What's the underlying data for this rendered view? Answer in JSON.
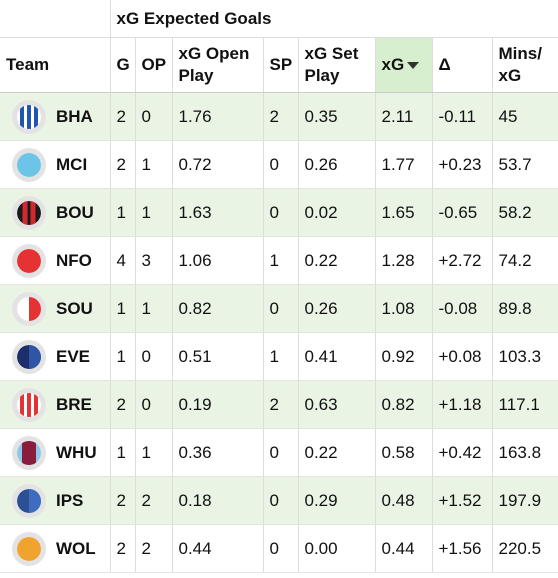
{
  "table": {
    "group_header": "xG Expected Goals",
    "columns": [
      "Team",
      "G",
      "OP",
      "xG Open Play",
      "SP",
      "xG Set Play",
      "xG",
      "Δ",
      "Mins/ xG"
    ],
    "rows": [
      [
        "BHA",
        "2",
        "0",
        "1.76",
        "2",
        "0.35",
        "2.11",
        "-0.11",
        "45"
      ],
      [
        "MCI",
        "2",
        "1",
        "0.72",
        "0",
        "0.26",
        "1.77",
        "+0.23",
        "53.7"
      ],
      [
        "BOU",
        "1",
        "1",
        "1.63",
        "0",
        "0.02",
        "1.65",
        "-0.65",
        "58.2"
      ],
      [
        "NFO",
        "4",
        "3",
        "1.06",
        "1",
        "0.22",
        "1.28",
        "+2.72",
        "74.2"
      ],
      [
        "SOU",
        "1",
        "1",
        "0.82",
        "0",
        "0.26",
        "1.08",
        "-0.08",
        "89.8"
      ],
      [
        "EVE",
        "1",
        "0",
        "0.51",
        "1",
        "0.41",
        "0.92",
        "+0.08",
        "103.3"
      ],
      [
        "BRE",
        "2",
        "0",
        "0.19",
        "2",
        "0.63",
        "0.82",
        "+1.18",
        "117.1"
      ],
      [
        "WHU",
        "1",
        "1",
        "0.36",
        "0",
        "0.22",
        "0.58",
        "+0.42",
        "163.8"
      ],
      [
        "IPS",
        "2",
        "2",
        "0.18",
        "0",
        "0.29",
        "0.48",
        "+1.52",
        "197.9"
      ],
      [
        "WOL",
        "2",
        "2",
        "0.44",
        "0",
        "0.00",
        "0.44",
        "+1.56",
        "220.5"
      ]
    ]
  }
}
